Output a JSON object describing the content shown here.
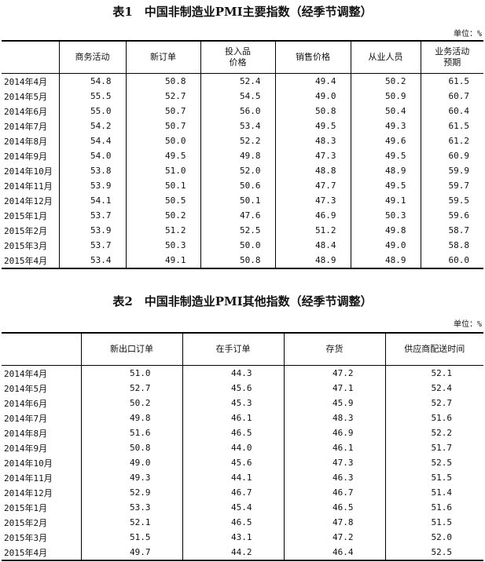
{
  "table1": {
    "title": "表1　中国非制造业PMI主要指数（经季节调整）",
    "unit": "单位：%",
    "headers": [
      "",
      "商务活动",
      "新订单",
      "投入品\n价格",
      "销售价格",
      "从业人员",
      "业务活动\n预期"
    ],
    "rows": [
      [
        "2014年4月",
        "54.8",
        "50.8",
        "52.4",
        "49.4",
        "50.2",
        "61.5"
      ],
      [
        "2014年5月",
        "55.5",
        "52.7",
        "54.5",
        "49.0",
        "50.9",
        "60.7"
      ],
      [
        "2014年6月",
        "55.0",
        "50.7",
        "56.0",
        "50.8",
        "50.4",
        "60.4"
      ],
      [
        "2014年7月",
        "54.2",
        "50.7",
        "53.4",
        "49.5",
        "49.3",
        "61.5"
      ],
      [
        "2014年8月",
        "54.4",
        "50.0",
        "52.2",
        "48.3",
        "49.6",
        "61.2"
      ],
      [
        "2014年9月",
        "54.0",
        "49.5",
        "49.8",
        "47.3",
        "49.5",
        "60.9"
      ],
      [
        "2014年10月",
        "53.8",
        "51.0",
        "52.0",
        "48.8",
        "48.9",
        "59.9"
      ],
      [
        "2014年11月",
        "53.9",
        "50.1",
        "50.6",
        "47.7",
        "49.5",
        "59.7"
      ],
      [
        "2014年12月",
        "54.1",
        "50.5",
        "50.1",
        "47.3",
        "49.1",
        "59.5"
      ],
      [
        "2015年1月",
        "53.7",
        "50.2",
        "47.6",
        "46.9",
        "50.3",
        "59.6"
      ],
      [
        "2015年2月",
        "53.9",
        "51.2",
        "52.5",
        "51.2",
        "49.8",
        "58.7"
      ],
      [
        "2015年3月",
        "53.7",
        "50.3",
        "50.0",
        "48.4",
        "49.0",
        "58.8"
      ],
      [
        "2015年4月",
        "53.4",
        "49.1",
        "50.8",
        "48.9",
        "48.9",
        "60.0"
      ]
    ]
  },
  "table2": {
    "title": "表2　中国非制造业PMI其他指数（经季节调整）",
    "unit": "单位：%",
    "headers": [
      "",
      "新出口订单",
      "在手订单",
      "存货",
      "供应商配送时间"
    ],
    "rows": [
      [
        "2014年4月",
        "51.0",
        "44.3",
        "47.2",
        "52.1"
      ],
      [
        "2014年5月",
        "52.7",
        "45.6",
        "47.1",
        "52.4"
      ],
      [
        "2014年6月",
        "50.2",
        "45.3",
        "45.9",
        "52.7"
      ],
      [
        "2014年7月",
        "49.8",
        "46.1",
        "48.3",
        "51.6"
      ],
      [
        "2014年8月",
        "51.6",
        "46.5",
        "46.9",
        "52.2"
      ],
      [
        "2014年9月",
        "50.8",
        "44.0",
        "46.1",
        "51.7"
      ],
      [
        "2014年10月",
        "49.0",
        "45.6",
        "47.3",
        "52.5"
      ],
      [
        "2014年11月",
        "49.3",
        "44.1",
        "46.3",
        "51.5"
      ],
      [
        "2014年12月",
        "52.9",
        "46.7",
        "46.7",
        "51.4"
      ],
      [
        "2015年1月",
        "53.3",
        "45.4",
        "46.5",
        "51.6"
      ],
      [
        "2015年2月",
        "52.1",
        "46.5",
        "47.8",
        "51.5"
      ],
      [
        "2015年3月",
        "51.5",
        "43.1",
        "47.2",
        "52.0"
      ],
      [
        "2015年4月",
        "49.7",
        "44.2",
        "46.4",
        "52.5"
      ]
    ]
  }
}
